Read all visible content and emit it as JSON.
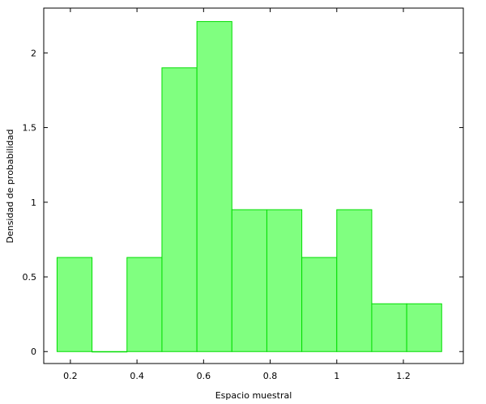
{
  "chart_data": {
    "type": "bar",
    "subtype": "histogram",
    "xlabel": "Espacio muestral",
    "ylabel": "Densidad de probabilidad",
    "xlim": [
      0.12,
      1.38
    ],
    "ylim": [
      -0.08,
      2.3
    ],
    "x_ticks": [
      0.2,
      0.4,
      0.6,
      0.8,
      1,
      1.2
    ],
    "x_tick_labels": [
      "0.2",
      "0.4",
      "0.6",
      "0.8",
      "1",
      "1.2"
    ],
    "y_ticks": [
      0,
      0.5,
      1,
      1.5,
      2
    ],
    "y_tick_labels": [
      "0",
      "0.5",
      "1",
      "1.5",
      "2"
    ],
    "grid": false,
    "bin_edges": [
      0.16,
      0.265,
      0.37,
      0.475,
      0.58,
      0.685,
      0.79,
      0.895,
      1.0,
      1.105,
      1.21,
      1.315
    ],
    "values": [
      0.63,
      0.0,
      0.63,
      1.9,
      2.21,
      0.95,
      0.95,
      0.63,
      0.95,
      0.32,
      0.32
    ],
    "colors": {
      "fill": "#80ff80",
      "stroke": "#00dd00"
    }
  }
}
